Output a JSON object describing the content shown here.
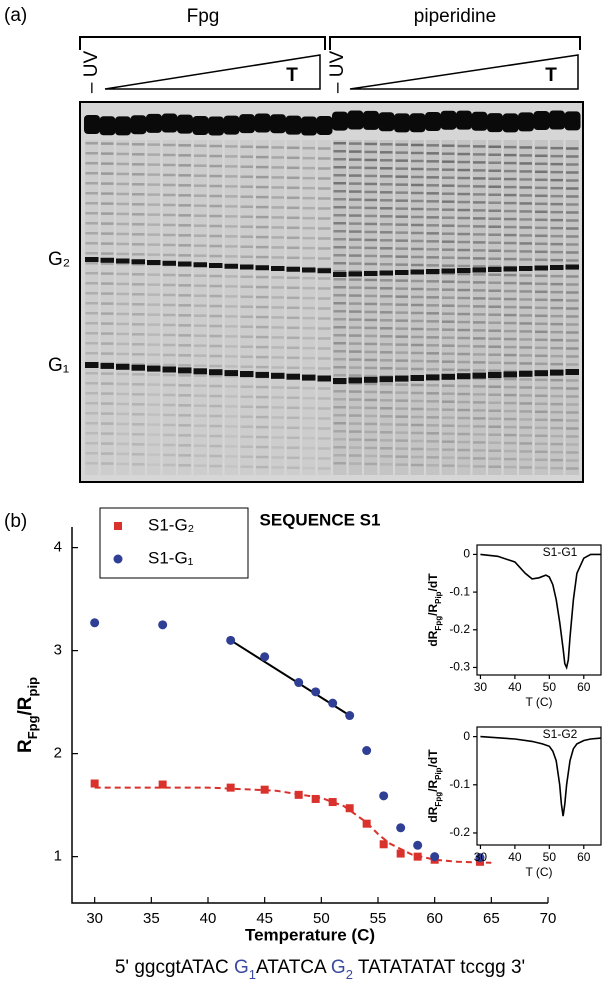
{
  "panel_a": {
    "label": "(a)",
    "groups": [
      "Fpg",
      "piperidine"
    ],
    "control_label": "– UV",
    "gradient_label": "T",
    "band_labels": [
      "G₂",
      "G₁"
    ]
  },
  "panel_b": {
    "label": "(b)",
    "sequence": [
      {
        "text": "5' ggcgtATAC "
      },
      {
        "text": "G",
        "color": "#3a4a9e"
      },
      {
        "text": "1",
        "color": "#3a4a9e",
        "sub": true
      },
      {
        "text": "ATATCA "
      },
      {
        "text": "G",
        "color": "#3a4a9e"
      },
      {
        "text": "2",
        "color": "#3a4a9e",
        "sub": true
      },
      {
        "text": " TATATATAT tccgg 3'"
      }
    ]
  },
  "chart_data": [
    {
      "type": "scatter",
      "title": "SEQUENCE S1",
      "x_label": "Temperature (C)",
      "y_label_parts": [
        {
          "text": "R"
        },
        {
          "text": "Fpg",
          "sub": true
        },
        {
          "text": "/R"
        },
        {
          "text": "pip",
          "sub": true
        }
      ],
      "xlim": [
        28,
        70
      ],
      "ylim": [
        0.55,
        4.2
      ],
      "xticks": [
        30,
        35,
        40,
        45,
        50,
        55,
        60,
        65,
        70
      ],
      "yticks": [
        1,
        2,
        3,
        4
      ],
      "legend": "upper left",
      "series": [
        {
          "name": "S1-G₂",
          "color": "#d9312b",
          "marker": "square",
          "x": [
            30,
            36,
            42,
            45,
            48,
            49.5,
            51,
            52.5,
            54,
            55.5,
            57,
            58.5,
            60,
            64
          ],
          "values": [
            1.71,
            1.7,
            1.67,
            1.65,
            1.6,
            1.56,
            1.53,
            1.47,
            1.32,
            1.12,
            1.03,
            1.0,
            0.97,
            0.95
          ]
        },
        {
          "name": "S1-G₁",
          "color": "#2f3f95",
          "marker": "circle",
          "x": [
            30,
            36,
            42,
            45,
            48,
            49.5,
            51,
            52.5,
            54,
            55.5,
            57,
            58.5,
            60,
            64
          ],
          "values": [
            3.27,
            3.25,
            3.1,
            2.94,
            2.69,
            2.6,
            2.49,
            2.37,
            2.03,
            1.59,
            1.28,
            1.11,
            1.0,
            0.99
          ]
        }
      ],
      "fits": [
        {
          "color": "#d9312b",
          "dashed": true,
          "x": [
            30,
            40,
            46,
            50,
            52,
            54,
            55,
            56,
            58,
            60,
            62,
            65
          ],
          "values": [
            1.67,
            1.67,
            1.64,
            1.57,
            1.49,
            1.33,
            1.22,
            1.13,
            1.02,
            0.97,
            0.95,
            0.94
          ]
        },
        {
          "color": "#000000",
          "dashed": false,
          "x": [
            42,
            52.5
          ],
          "values": [
            3.1,
            2.37
          ]
        }
      ]
    },
    {
      "type": "line",
      "title": "S1-G1",
      "x_label": "T (C)",
      "y_label_parts": [
        {
          "text": "dR"
        },
        {
          "text": "Fpg",
          "sub": true
        },
        {
          "text": "/R"
        },
        {
          "text": "Pip",
          "sub": true
        },
        {
          "text": "/dT"
        }
      ],
      "xlim": [
        29,
        65
      ],
      "ylim": [
        -0.32,
        0.025
      ],
      "xticks": [
        30,
        40,
        50,
        60
      ],
      "yticks": [
        0,
        -0.1,
        -0.2,
        -0.3
      ],
      "color": "#000000",
      "x": [
        30,
        35,
        40,
        43,
        45,
        47,
        49,
        50,
        51,
        52,
        53,
        54,
        54.5,
        55,
        55.5,
        56,
        57,
        58,
        60,
        62,
        65
      ],
      "values": [
        0,
        -0.005,
        -0.02,
        -0.05,
        -0.065,
        -0.062,
        -0.055,
        -0.06,
        -0.08,
        -0.12,
        -0.18,
        -0.25,
        -0.29,
        -0.3,
        -0.28,
        -0.22,
        -0.12,
        -0.05,
        -0.01,
        0,
        0
      ]
    },
    {
      "type": "line",
      "title": "S1-G2",
      "x_label": "T (C)",
      "y_label_parts": [
        {
          "text": "dR"
        },
        {
          "text": "Fpg",
          "sub": true
        },
        {
          "text": "/R"
        },
        {
          "text": "Pip",
          "sub": true
        },
        {
          "text": "/dT"
        }
      ],
      "xlim": [
        29,
        65
      ],
      "ylim": [
        -0.225,
        0.02
      ],
      "xticks": [
        30,
        40,
        50,
        60
      ],
      "yticks": [
        0,
        -0.1,
        -0.2
      ],
      "color": "#000000",
      "x": [
        30,
        40,
        45,
        48,
        50,
        51,
        52,
        53,
        53.5,
        54,
        54.5,
        55,
        56,
        57,
        58,
        60,
        62,
        65
      ],
      "values": [
        0,
        -0.005,
        -0.01,
        -0.015,
        -0.02,
        -0.03,
        -0.05,
        -0.1,
        -0.14,
        -0.165,
        -0.14,
        -0.1,
        -0.05,
        -0.025,
        -0.015,
        -0.008,
        -0.005,
        -0.003
      ]
    }
  ]
}
